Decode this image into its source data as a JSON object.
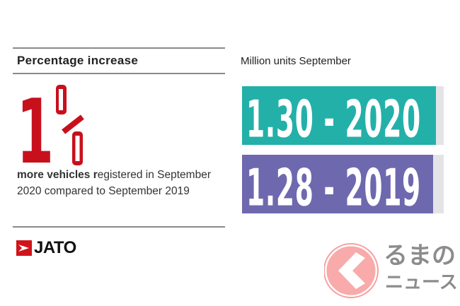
{
  "left_panel": {
    "title": "Percentage increase",
    "big_value": "1",
    "big_unit": "%",
    "description_bold": "more vehicles r",
    "description_rest": "egistered in September 2020 compared to September 2019",
    "accent_color": "#c8101c",
    "logo_text": "JATO"
  },
  "chart_data": {
    "type": "bar",
    "orientation": "horizontal",
    "title": "Million units September",
    "categories": [
      "2020",
      "2019"
    ],
    "values": [
      1.3,
      1.28
    ],
    "labels": [
      "1.30 - 2020",
      "1.28 - 2019"
    ],
    "colors": [
      "#23b0a9",
      "#6e68ae"
    ],
    "xlim": [
      0,
      1.35
    ]
  },
  "watermark": {
    "text_line1": "るまの",
    "text_line2": "ニュース"
  }
}
